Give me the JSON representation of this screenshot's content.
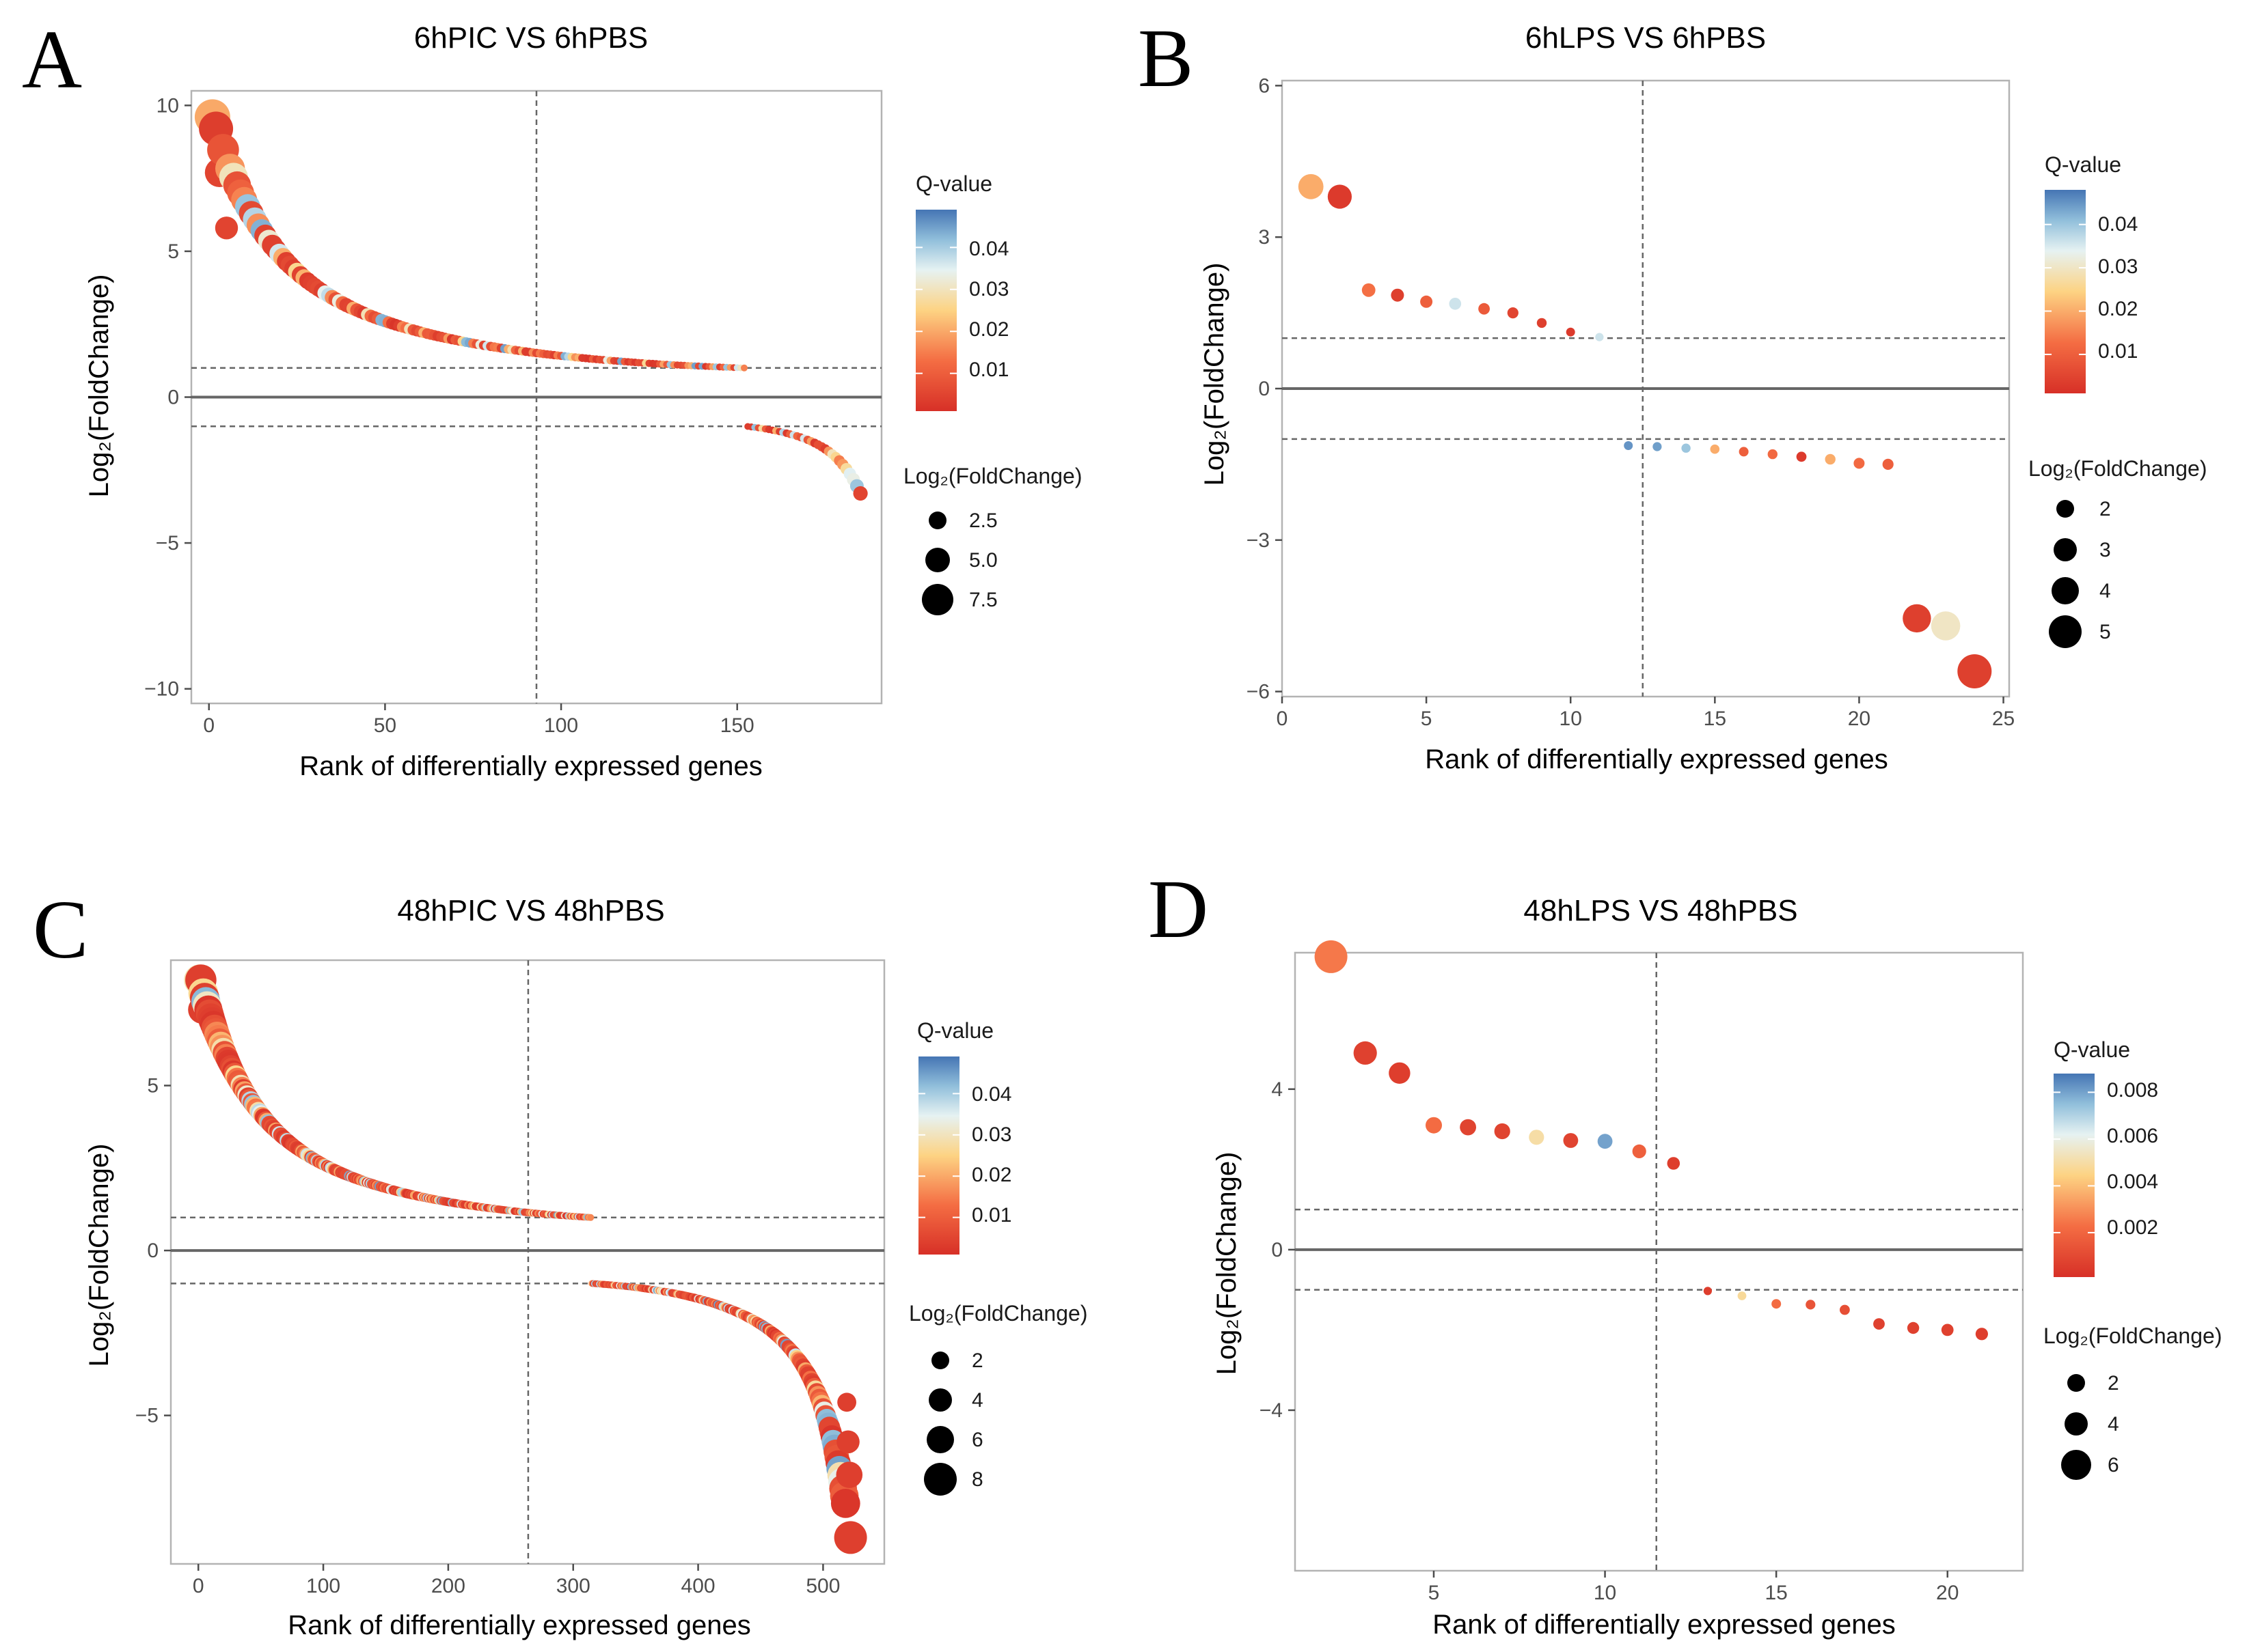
{
  "figure": {
    "panels": [
      {
        "letter": "A",
        "title": "6hPIC VS 6hPBS"
      },
      {
        "letter": "B",
        "title": "6hLPS VS 6hPBS"
      },
      {
        "letter": "C",
        "title": "48hPIC VS 48hPBS"
      },
      {
        "letter": "D",
        "title": "48hLPS VS 48hPBS"
      }
    ]
  },
  "colors": {
    "q_low": "#d73027",
    "q_mid_low": "#f46d43",
    "q_mid": "#fdd383",
    "q_mid_high": "#e6f2f2",
    "q_high_light": "#91bfdb",
    "q_high": "#4575b4",
    "frame": "#b3b3b3",
    "zero_line": "#666666",
    "dashed": "#666666"
  },
  "chart_data": [
    {
      "type": "scatter",
      "panel": "A",
      "title": "6hPIC VS 6hPBS",
      "xlabel": "Rank of differentially expressed genes",
      "ylabel": "Log₂(FoldChange)",
      "xlim": [
        -5,
        191
      ],
      "ylim": [
        -10.5,
        10.5
      ],
      "xticks": [
        0,
        50,
        100,
        150
      ],
      "yticks": [
        -10,
        -5,
        0,
        5,
        10
      ],
      "ytick_labels": [
        "−10",
        "−5",
        "0",
        "5",
        "10"
      ],
      "vline": 93,
      "hlines": [
        1,
        -1
      ],
      "curves": [
        {
          "n_start": 1,
          "n_end": 152,
          "type": "up",
          "top": 9.6,
          "tail": 1.0,
          "decay": 14
        },
        {
          "n_start": 153,
          "n_end": 185,
          "type": "down",
          "top": -3.3,
          "tail": -1.0,
          "decay": 6
        }
      ],
      "highlight_points": [
        {
          "x": 1,
          "y": 9.6,
          "q": 0.02
        },
        {
          "x": 3,
          "y": 7.7,
          "q": 0.005
        },
        {
          "x": 5,
          "y": 5.8,
          "q": 0.005
        },
        {
          "x": 185,
          "y": -3.3,
          "q": 0.005
        }
      ],
      "q_legend": {
        "title": "Q-value",
        "labels": [
          "0.04",
          "0.03",
          "0.02",
          "0.01"
        ],
        "values": [
          0.04,
          0.03,
          0.02,
          0.01
        ],
        "min": 0.001,
        "max": 0.049
      },
      "size_legend": {
        "title": "Log₂(FoldChange)",
        "labels": [
          "2.5",
          "5.0",
          "7.5"
        ],
        "values": [
          2.5,
          5.0,
          7.5
        ],
        "min": 1,
        "max": 9.6
      }
    },
    {
      "type": "scatter",
      "panel": "B",
      "title": "6hLPS VS 6hPBS",
      "xlabel": "Rank of differentially expressed genes",
      "ylabel": "Log₂(FoldChange)",
      "xlim": [
        0,
        25.2
      ],
      "ylim": [
        -6.1,
        6.1
      ],
      "xticks": [
        0,
        5,
        10,
        15,
        20,
        25
      ],
      "yticks": [
        -6,
        -3,
        0,
        3,
        6
      ],
      "ytick_labels": [
        "−6",
        "−3",
        "0",
        "3",
        "6"
      ],
      "vline": 12.5,
      "hlines": [
        1,
        -1
      ],
      "points": [
        {
          "x": 1,
          "y": 4.0,
          "q": 0.02
        },
        {
          "x": 2,
          "y": 3.8,
          "q": 0.003
        },
        {
          "x": 3,
          "y": 1.95,
          "q": 0.013
        },
        {
          "x": 4,
          "y": 1.85,
          "q": 0.004
        },
        {
          "x": 5,
          "y": 1.72,
          "q": 0.01
        },
        {
          "x": 6,
          "y": 1.68,
          "q": 0.036
        },
        {
          "x": 7,
          "y": 1.58,
          "q": 0.009
        },
        {
          "x": 8,
          "y": 1.5,
          "q": 0.005
        },
        {
          "x": 9,
          "y": 1.3,
          "q": 0.004
        },
        {
          "x": 10,
          "y": 1.12,
          "q": 0.003
        },
        {
          "x": 11,
          "y": 1.02,
          "q": 0.036
        },
        {
          "x": 12,
          "y": -1.13,
          "q": 0.045
        },
        {
          "x": 13,
          "y": -1.15,
          "q": 0.044
        },
        {
          "x": 14,
          "y": -1.18,
          "q": 0.04
        },
        {
          "x": 15,
          "y": -1.2,
          "q": 0.02
        },
        {
          "x": 16,
          "y": -1.25,
          "q": 0.01
        },
        {
          "x": 17,
          "y": -1.3,
          "q": 0.012
        },
        {
          "x": 18,
          "y": -1.35,
          "q": 0.003
        },
        {
          "x": 19,
          "y": -1.4,
          "q": 0.02
        },
        {
          "x": 20,
          "y": -1.48,
          "q": 0.012
        },
        {
          "x": 21,
          "y": -1.5,
          "q": 0.01
        },
        {
          "x": 22,
          "y": -4.55,
          "q": 0.004
        },
        {
          "x": 23,
          "y": -4.7,
          "q": 0.03
        },
        {
          "x": 24,
          "y": -5.6,
          "q": 0.004
        }
      ],
      "q_legend": {
        "title": "Q-value",
        "labels": [
          "0.04",
          "0.01",
          "0.02",
          "0.03"
        ],
        "values": [
          0.04,
          0.01,
          0.02,
          0.03
        ],
        "min": 0.001,
        "max": 0.048
      },
      "size_legend": {
        "title": "Log₂(FoldChange)",
        "labels": [
          "2",
          "3",
          "4",
          "5"
        ],
        "values": [
          2,
          3,
          4,
          5
        ],
        "min": 1,
        "max": 5.6
      }
    },
    {
      "type": "scatter",
      "panel": "C",
      "title": "48hPIC VS 48hPBS",
      "xlabel": "Rank of differentially expressed genes",
      "ylabel": "Log₂(FoldChange)",
      "xlim": [
        -22,
        549
      ],
      "ylim": [
        -9.5,
        8.8
      ],
      "xticks": [
        0,
        100,
        200,
        300,
        400,
        500
      ],
      "yticks": [
        -5,
        0,
        5
      ],
      "ytick_labels": [
        "−5",
        "0",
        "5"
      ],
      "vline": 264,
      "hlines": [
        1,
        -1
      ],
      "curves": [
        {
          "n_start": 1,
          "n_end": 314,
          "type": "up",
          "top": 8.2,
          "tail": 1.0,
          "decay": 35
        },
        {
          "n_start": 315,
          "n_end": 522,
          "type": "down",
          "top": -8.7,
          "tail": -1.0,
          "decay": 18
        }
      ],
      "highlight_points": [
        {
          "x": 2,
          "y": 8.2,
          "q": 0.004
        },
        {
          "x": 3,
          "y": 7.3,
          "q": 0.004
        },
        {
          "x": 519,
          "y": -4.6,
          "q": 0.004
        },
        {
          "x": 520,
          "y": -5.8,
          "q": 0.004
        },
        {
          "x": 521,
          "y": -6.8,
          "q": 0.004
        },
        {
          "x": 522,
          "y": -8.7,
          "q": 0.004
        }
      ],
      "q_legend": {
        "title": "Q-value",
        "labels": [
          "0.04",
          "0.03",
          "0.02",
          "0.01"
        ],
        "values": [
          0.04,
          0.03,
          0.02,
          0.01
        ],
        "min": 0.001,
        "max": 0.049
      },
      "size_legend": {
        "title": "Log₂(FoldChange)",
        "labels": [
          "2",
          "4",
          "6",
          "8"
        ],
        "values": [
          2,
          4,
          6,
          8
        ],
        "min": 1,
        "max": 8.7
      }
    },
    {
      "type": "scatter",
      "panel": "D",
      "title": "48hLPS VS 48hPBS",
      "xlabel": "Rank of differentially expressed genes",
      "ylabel": "Log₂(FoldChange)",
      "xlim": [
        0.95,
        22.2
      ],
      "ylim": [
        -8,
        7.4
      ],
      "xticks": [
        5,
        10,
        15,
        20
      ],
      "yticks": [
        -4,
        0,
        4
      ],
      "ytick_labels": [
        "−4",
        "0",
        "4"
      ],
      "vline": 11.5,
      "hlines": [
        1,
        -1
      ],
      "points": [
        {
          "x": 2,
          "y": 7.3,
          "q": 0.0025
        },
        {
          "x": 3,
          "y": 4.9,
          "q": 0.0007
        },
        {
          "x": 4,
          "y": 4.4,
          "q": 0.0006
        },
        {
          "x": 5,
          "y": 3.1,
          "q": 0.0022
        },
        {
          "x": 6,
          "y": 3.05,
          "q": 0.0008
        },
        {
          "x": 7,
          "y": 2.95,
          "q": 0.0008
        },
        {
          "x": 8,
          "y": 2.8,
          "q": 0.005
        },
        {
          "x": 9,
          "y": 2.72,
          "q": 0.0008
        },
        {
          "x": 10,
          "y": 2.7,
          "q": 0.008
        },
        {
          "x": 11,
          "y": 2.45,
          "q": 0.0018
        },
        {
          "x": 12,
          "y": 2.15,
          "q": 0.0006
        },
        {
          "x": 13,
          "y": -1.03,
          "q": 0.0006
        },
        {
          "x": 14,
          "y": -1.15,
          "q": 0.0048
        },
        {
          "x": 15,
          "y": -1.35,
          "q": 0.0022
        },
        {
          "x": 16,
          "y": -1.37,
          "q": 0.0014
        },
        {
          "x": 17,
          "y": -1.5,
          "q": 0.0012
        },
        {
          "x": 18,
          "y": -1.85,
          "q": 0.0007
        },
        {
          "x": 19,
          "y": -1.95,
          "q": 0.0007
        },
        {
          "x": 20,
          "y": -2.0,
          "q": 0.0007
        },
        {
          "x": 21,
          "y": -2.1,
          "q": 0.0006
        }
      ],
      "q_legend": {
        "title": "Q-value",
        "labels": [
          "0.008",
          "0.006",
          "0.004",
          "0.002"
        ],
        "values": [
          0.008,
          0.006,
          0.004,
          0.002
        ],
        "min": 0.0001,
        "max": 0.0088
      },
      "size_legend": {
        "title": "Log₂(FoldChange)",
        "labels": [
          "2",
          "4",
          "6"
        ],
        "values": [
          2,
          4,
          6
        ],
        "min": 1,
        "max": 7.3
      }
    }
  ]
}
